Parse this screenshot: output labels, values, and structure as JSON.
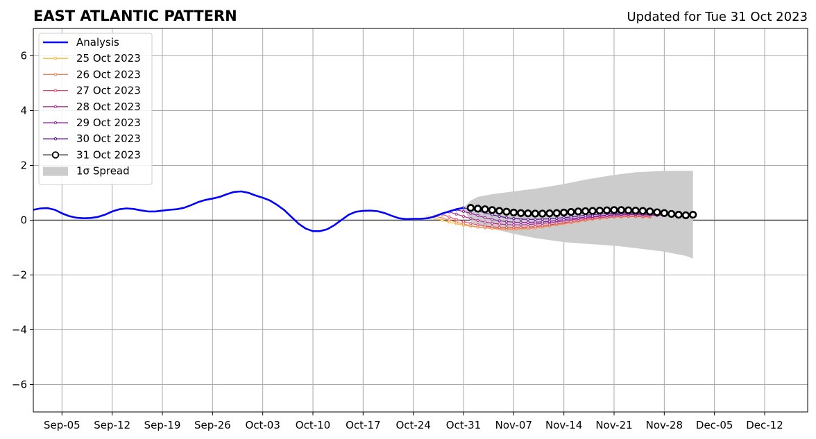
{
  "chart_data": {
    "type": "line",
    "title": "EAST ATLANTIC PATTERN",
    "subtitle": "Updated for Tue 31 Oct 2023",
    "xlabel": "",
    "ylabel": "",
    "xlim": [
      "2023-09-01",
      "2023-12-18"
    ],
    "ylim": [
      -7,
      7
    ],
    "x_ticks": [
      "Sep-05",
      "Sep-12",
      "Sep-19",
      "Sep-26",
      "Oct-03",
      "Oct-10",
      "Oct-17",
      "Oct-24",
      "Oct-31",
      "Nov-07",
      "Nov-14",
      "Nov-21",
      "Nov-28",
      "Dec-05",
      "Dec-12"
    ],
    "x_tick_dates": [
      "2023-09-05",
      "2023-09-12",
      "2023-09-19",
      "2023-09-26",
      "2023-10-03",
      "2023-10-10",
      "2023-10-17",
      "2023-10-24",
      "2023-10-31",
      "2023-11-07",
      "2023-11-14",
      "2023-11-21",
      "2023-11-28",
      "2023-12-05",
      "2023-12-12"
    ],
    "y_ticks": [
      -6,
      -4,
      -2,
      0,
      2,
      4,
      6
    ],
    "y_tick_labels": [
      "−6",
      "−4",
      "−2",
      "0",
      "2",
      "4",
      "6"
    ],
    "grid": true,
    "legend_position": "top-left",
    "zero_line": 0,
    "analysis": {
      "name": "Analysis",
      "color": "#0000ff",
      "points": [
        [
          "2023-09-01",
          0.38
        ],
        [
          "2023-09-02",
          0.43
        ],
        [
          "2023-09-03",
          0.44
        ],
        [
          "2023-09-04",
          0.38
        ],
        [
          "2023-09-05",
          0.25
        ],
        [
          "2023-09-06",
          0.15
        ],
        [
          "2023-09-07",
          0.09
        ],
        [
          "2023-09-08",
          0.07
        ],
        [
          "2023-09-09",
          0.08
        ],
        [
          "2023-09-10",
          0.12
        ],
        [
          "2023-09-11",
          0.2
        ],
        [
          "2023-09-12",
          0.32
        ],
        [
          "2023-09-13",
          0.4
        ],
        [
          "2023-09-14",
          0.43
        ],
        [
          "2023-09-15",
          0.41
        ],
        [
          "2023-09-16",
          0.36
        ],
        [
          "2023-09-17",
          0.32
        ],
        [
          "2023-09-18",
          0.32
        ],
        [
          "2023-09-19",
          0.35
        ],
        [
          "2023-09-20",
          0.38
        ],
        [
          "2023-09-21",
          0.4
        ],
        [
          "2023-09-22",
          0.45
        ],
        [
          "2023-09-23",
          0.55
        ],
        [
          "2023-09-24",
          0.66
        ],
        [
          "2023-09-25",
          0.74
        ],
        [
          "2023-09-26",
          0.79
        ],
        [
          "2023-09-27",
          0.85
        ],
        [
          "2023-09-28",
          0.95
        ],
        [
          "2023-09-29",
          1.03
        ],
        [
          "2023-09-30",
          1.05
        ],
        [
          "2023-10-01",
          1.0
        ],
        [
          "2023-10-02",
          0.9
        ],
        [
          "2023-10-03",
          0.82
        ],
        [
          "2023-10-04",
          0.72
        ],
        [
          "2023-10-05",
          0.56
        ],
        [
          "2023-10-06",
          0.37
        ],
        [
          "2023-10-07",
          0.12
        ],
        [
          "2023-10-08",
          -0.13
        ],
        [
          "2023-10-09",
          -0.31
        ],
        [
          "2023-10-10",
          -0.4
        ],
        [
          "2023-10-11",
          -0.4
        ],
        [
          "2023-10-12",
          -0.33
        ],
        [
          "2023-10-13",
          -0.18
        ],
        [
          "2023-10-14",
          0.01
        ],
        [
          "2023-10-15",
          0.2
        ],
        [
          "2023-10-16",
          0.31
        ],
        [
          "2023-10-17",
          0.34
        ],
        [
          "2023-10-18",
          0.35
        ],
        [
          "2023-10-19",
          0.33
        ],
        [
          "2023-10-20",
          0.26
        ],
        [
          "2023-10-21",
          0.16
        ],
        [
          "2023-10-22",
          0.07
        ],
        [
          "2023-10-23",
          0.04
        ],
        [
          "2023-10-24",
          0.05
        ],
        [
          "2023-10-25",
          0.05
        ],
        [
          "2023-10-26",
          0.07
        ],
        [
          "2023-10-27",
          0.14
        ],
        [
          "2023-10-28",
          0.24
        ],
        [
          "2023-10-29",
          0.32
        ],
        [
          "2023-10-30",
          0.4
        ],
        [
          "2023-10-31",
          0.45
        ]
      ]
    },
    "spread": {
      "name": "1σ Spread",
      "color": "#cccccc",
      "x": [
        "2023-10-31",
        "2023-11-01",
        "2023-11-02",
        "2023-11-04",
        "2023-11-07",
        "2023-11-10",
        "2023-11-14",
        "2023-11-17",
        "2023-11-21",
        "2023-11-24",
        "2023-11-28",
        "2023-12-01",
        "2023-12-02"
      ],
      "upper": [
        0.45,
        0.72,
        0.85,
        0.95,
        1.05,
        1.15,
        1.32,
        1.48,
        1.65,
        1.75,
        1.8,
        1.8,
        1.8
      ],
      "lower": [
        0.45,
        -0.05,
        -0.2,
        -0.3,
        -0.5,
        -0.65,
        -0.8,
        -0.86,
        -0.93,
        -1.02,
        -1.15,
        -1.3,
        -1.4
      ]
    },
    "series": [
      {
        "name": "25 Oct 2023",
        "color": "#fcb838",
        "start": "2023-10-26",
        "values": [
          0.12,
          0.07,
          0.0,
          -0.07,
          -0.13,
          -0.18,
          -0.22,
          -0.25,
          -0.27,
          -0.28,
          -0.29,
          -0.3,
          -0.29,
          -0.28,
          -0.26,
          -0.24,
          -0.21,
          -0.18,
          -0.14,
          -0.1,
          -0.06,
          -0.02,
          0.02,
          0.05,
          0.08,
          0.1,
          0.12,
          0.13,
          0.14,
          0.14,
          0.14,
          0.13
        ]
      },
      {
        "name": "26 Oct 2023",
        "color": "#f3804b",
        "start": "2023-10-27",
        "values": [
          0.15,
          0.08,
          0.01,
          -0.07,
          -0.14,
          -0.2,
          -0.25,
          -0.28,
          -0.3,
          -0.32,
          -0.33,
          -0.33,
          -0.32,
          -0.3,
          -0.28,
          -0.25,
          -0.21,
          -0.17,
          -0.13,
          -0.09,
          -0.05,
          -0.01,
          0.03,
          0.06,
          0.09,
          0.11,
          0.12,
          0.13,
          0.13,
          0.12,
          0.11
        ]
      },
      {
        "name": "27 Oct 2023",
        "color": "#de4b68",
        "start": "2023-10-28",
        "values": [
          0.22,
          0.12,
          0.03,
          -0.05,
          -0.12,
          -0.17,
          -0.21,
          -0.24,
          -0.26,
          -0.27,
          -0.27,
          -0.26,
          -0.25,
          -0.23,
          -0.2,
          -0.17,
          -0.13,
          -0.09,
          -0.05,
          -0.01,
          0.03,
          0.06,
          0.09,
          0.11,
          0.13,
          0.14,
          0.15,
          0.15,
          0.14,
          0.13
        ]
      },
      {
        "name": "28 Oct 2023",
        "color": "#b52f8c",
        "start": "2023-10-29",
        "values": [
          0.3,
          0.22,
          0.14,
          0.06,
          -0.01,
          -0.07,
          -0.11,
          -0.14,
          -0.16,
          -0.17,
          -0.17,
          -0.16,
          -0.14,
          -0.12,
          -0.09,
          -0.06,
          -0.03,
          0.01,
          0.05,
          0.08,
          0.11,
          0.14,
          0.16,
          0.18,
          0.19,
          0.2,
          0.2,
          0.19,
          0.18,
          0.17
        ]
      },
      {
        "name": "29 Oct 2023",
        "color": "#8b1a9c",
        "start": "2023-10-30",
        "values": [
          0.38,
          0.32,
          0.25,
          0.17,
          0.09,
          0.03,
          -0.02,
          -0.05,
          -0.07,
          -0.08,
          -0.08,
          -0.07,
          -0.06,
          -0.04,
          -0.01,
          0.02,
          0.05,
          0.08,
          0.11,
          0.14,
          0.16,
          0.18,
          0.2,
          0.21,
          0.22,
          0.22,
          0.21,
          0.2,
          0.19,
          0.18
        ]
      },
      {
        "name": "30 Oct 2023",
        "color": "#5b0e96",
        "start": "2023-10-31",
        "values": [
          0.45,
          0.4,
          0.34,
          0.27,
          0.2,
          0.14,
          0.09,
          0.06,
          0.04,
          0.03,
          0.03,
          0.04,
          0.05,
          0.07,
          0.09,
          0.12,
          0.15,
          0.18,
          0.2,
          0.22,
          0.24,
          0.25,
          0.26,
          0.26,
          0.26,
          0.25,
          0.24,
          0.23,
          0.22,
          0.21
        ]
      },
      {
        "name": "31 Oct 2023",
        "color": "#000000",
        "start": "2023-11-01",
        "values": [
          0.45,
          0.42,
          0.4,
          0.37,
          0.34,
          0.31,
          0.28,
          0.26,
          0.25,
          0.24,
          0.24,
          0.25,
          0.26,
          0.28,
          0.3,
          0.32,
          0.33,
          0.34,
          0.35,
          0.36,
          0.37,
          0.37,
          0.36,
          0.35,
          0.34,
          0.32,
          0.29,
          0.26,
          0.23,
          0.2,
          0.18,
          0.2
        ]
      }
    ]
  }
}
